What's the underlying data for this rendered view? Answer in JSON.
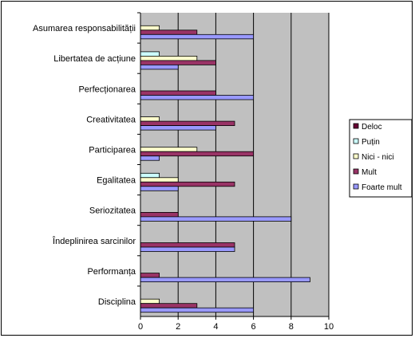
{
  "chart_data": {
    "type": "bar",
    "orientation": "horizontal",
    "categories": [
      "Asumarea responsabilității",
      "Libertatea de acțiune",
      "Perfecționarea",
      "Creativitatea",
      "Participarea",
      "Egalitatea",
      "Seriozitatea",
      "Îndeplinirea sarcinilor",
      "Performanța",
      "Disciplina"
    ],
    "series": [
      {
        "name": "Deloc",
        "color": "#660033",
        "values": [
          0,
          0,
          0,
          0,
          0,
          0,
          0,
          0,
          0,
          0
        ]
      },
      {
        "name": "Puțin",
        "color": "#CCFFFF",
        "values": [
          0,
          1,
          0,
          0,
          0,
          1,
          0,
          0,
          0,
          0
        ]
      },
      {
        "name": "Nici - nici",
        "color": "#FFFFCC",
        "values": [
          1,
          3,
          0,
          1,
          3,
          2,
          0,
          0,
          0,
          1
        ]
      },
      {
        "name": "Mult",
        "color": "#993366",
        "values": [
          3,
          4,
          4,
          5,
          6,
          5,
          2,
          5,
          1,
          3
        ]
      },
      {
        "name": "Foarte mult",
        "color": "#9999FF",
        "values": [
          6,
          2,
          6,
          4,
          1,
          2,
          8,
          5,
          9,
          6
        ]
      }
    ],
    "xlim": [
      0,
      10
    ],
    "xticks": [
      0,
      2,
      4,
      6,
      8,
      10
    ],
    "xlabel": "",
    "ylabel": "",
    "title": "",
    "grid": "vertical",
    "plot_background": "#C0C0C0",
    "legend_position": "right"
  }
}
